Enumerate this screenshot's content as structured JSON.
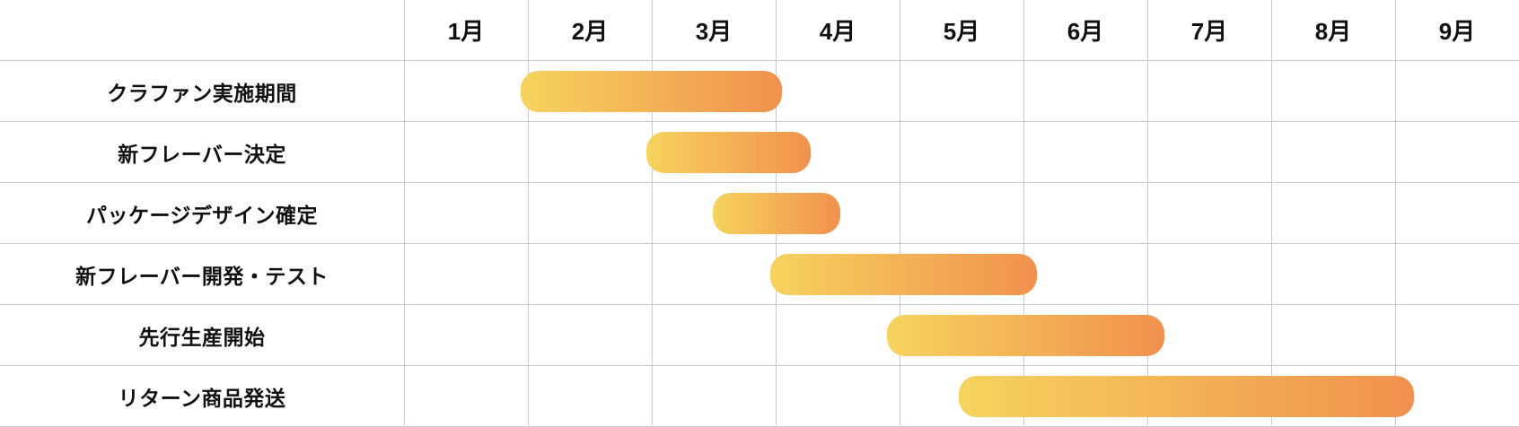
{
  "chart_data": {
    "type": "bar",
    "subtype": "gantt",
    "title": "",
    "xlabel": "",
    "ylabel": "",
    "axis": {
      "unit": "month",
      "range_months": [
        1,
        10
      ],
      "grid": true
    },
    "months": [
      "1月",
      "2月",
      "3月",
      "4月",
      "5月",
      "6月",
      "7月",
      "8月",
      "9月"
    ],
    "tasks": [
      {
        "label": "クラファン実施期間",
        "start_month": 1.94,
        "end_month": 4.05
      },
      {
        "label": "新フレーバー決定",
        "start_month": 2.96,
        "end_month": 4.28
      },
      {
        "label": "パッケージデザイン確定",
        "start_month": 3.49,
        "end_month": 4.52
      },
      {
        "label": "新フレーバー開発・テスト",
        "start_month": 3.96,
        "end_month": 6.11
      },
      {
        "label": "先行生産開始",
        "start_month": 4.9,
        "end_month": 7.14
      },
      {
        "label": "リターン商品発送",
        "start_month": 5.48,
        "end_month": 9.15
      }
    ],
    "colors": {
      "bar_gradient_start": "#f6d35e",
      "bar_gradient_end": "#f0914e",
      "gridline": "#c9c9c9",
      "text": "#111111",
      "background": "#ffffff"
    }
  }
}
